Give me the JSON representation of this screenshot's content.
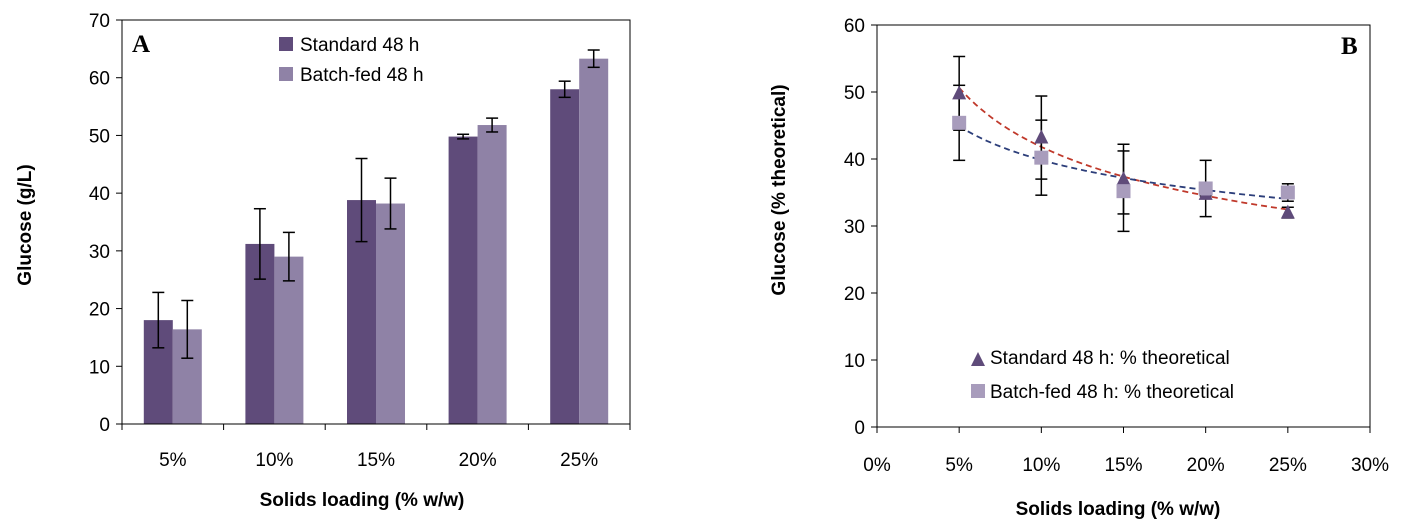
{
  "chart_data": [
    {
      "type": "bar",
      "panel_label": "A",
      "title": "",
      "xlabel": "Solids loading (% w/w)",
      "ylabel": "Glucose (g/L)",
      "ylim": [
        0,
        70
      ],
      "yticks": [
        "0",
        "10",
        "20",
        "30",
        "40",
        "50",
        "60",
        "70"
      ],
      "categories": [
        "5%",
        "10%",
        "15%",
        "20%",
        "25%"
      ],
      "series": [
        {
          "name": "Standard 48 h",
          "color": "#5f4b7a",
          "values": [
            18.0,
            31.2,
            38.8,
            49.8,
            58.0
          ],
          "errors": [
            4.8,
            6.1,
            7.2,
            0.4,
            1.4
          ]
        },
        {
          "name": "Batch-fed 48 h",
          "color": "#8f82a6",
          "values": [
            16.4,
            29.0,
            38.2,
            51.8,
            63.3
          ],
          "errors": [
            5.0,
            4.2,
            4.4,
            1.2,
            1.5
          ]
        }
      ],
      "legend_position": "top-center",
      "grid": false
    },
    {
      "type": "scatter",
      "panel_label": "B",
      "title": "",
      "xlabel": "Solids loading (% w/w)",
      "ylabel": "Glucose (% theoretical)",
      "xlim": [
        0,
        30
      ],
      "ylim": [
        0,
        60
      ],
      "xticks": [
        "0%",
        "5%",
        "10%",
        "15%",
        "20%",
        "25%",
        "30%"
      ],
      "yticks": [
        "0",
        "10",
        "20",
        "30",
        "40",
        "50",
        "60"
      ],
      "series": [
        {
          "name": "Standard 48 h: % theoretical",
          "marker": "triangle",
          "color": "#5f4b7a",
          "trendline_color": "#c0392b",
          "x": [
            5,
            10,
            15,
            20,
            25
          ],
          "y": [
            49.8,
            43.2,
            37.0,
            34.8,
            32.0
          ],
          "errors": [
            5.5,
            6.2,
            5.2,
            0.3,
            0.8
          ]
        },
        {
          "name": "Batch-fed 48 h: % theoretical",
          "marker": "square",
          "color": "#a89cbc",
          "trendline_color": "#2c3e7a",
          "x": [
            5,
            10,
            15,
            20,
            25
          ],
          "y": [
            45.4,
            40.2,
            35.2,
            35.6,
            35.0
          ],
          "errors": [
            5.6,
            5.6,
            6.0,
            4.2,
            1.3
          ]
        }
      ],
      "legend_position": "bottom-center",
      "grid": false
    }
  ]
}
